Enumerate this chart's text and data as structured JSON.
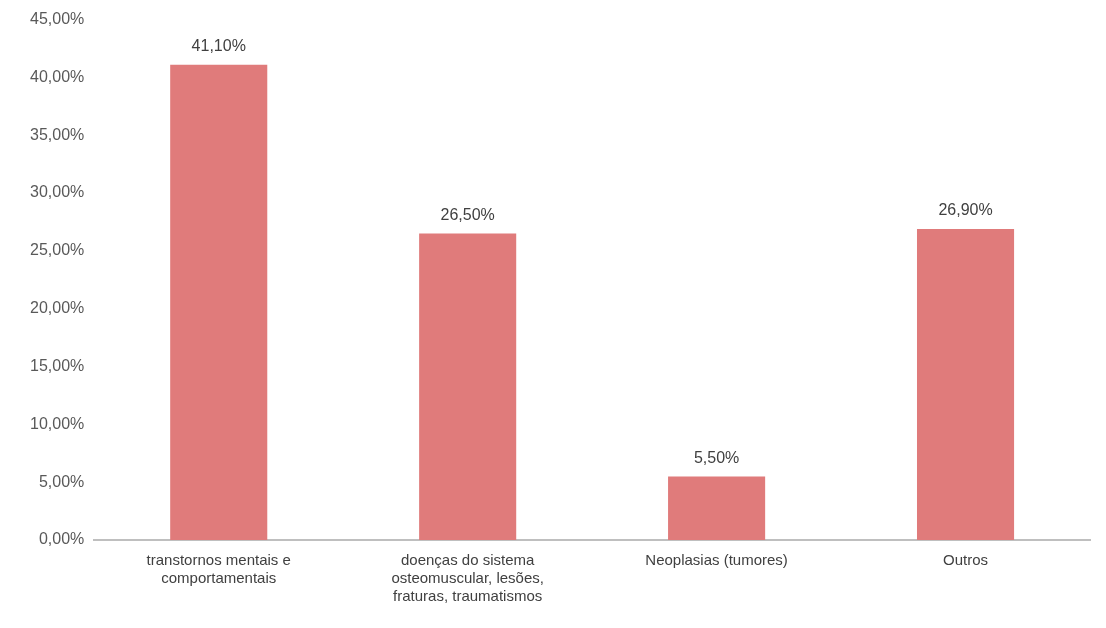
{
  "chart_data": {
    "type": "bar",
    "categories": [
      "transtornos mentais e comportamentais",
      "doenças do sistema osteomuscular, lesões, fraturas, traumatismos",
      "Neoplasias (tumores)",
      "Outros"
    ],
    "values": [
      41.1,
      26.5,
      5.5,
      26.9
    ],
    "color": "#e07b7b",
    "value_labels": [
      "41,10%",
      "26,50%",
      "5,50%",
      "26,90%"
    ],
    "ylim": [
      0,
      45
    ],
    "yticks": [
      {
        "value": 0,
        "label": "0,00%"
      },
      {
        "value": 5,
        "label": "5,00%"
      },
      {
        "value": 10,
        "label": "10,00%"
      },
      {
        "value": 15,
        "label": "15,00%"
      },
      {
        "value": 20,
        "label": "20,00%"
      },
      {
        "value": 25,
        "label": "25,00%"
      },
      {
        "value": 30,
        "label": "30,00%"
      },
      {
        "value": 35,
        "label": "35,00%"
      },
      {
        "value": 40,
        "label": "40,00%"
      },
      {
        "value": 45,
        "label": "45,00%"
      }
    ],
    "grid": false,
    "legend": false
  }
}
